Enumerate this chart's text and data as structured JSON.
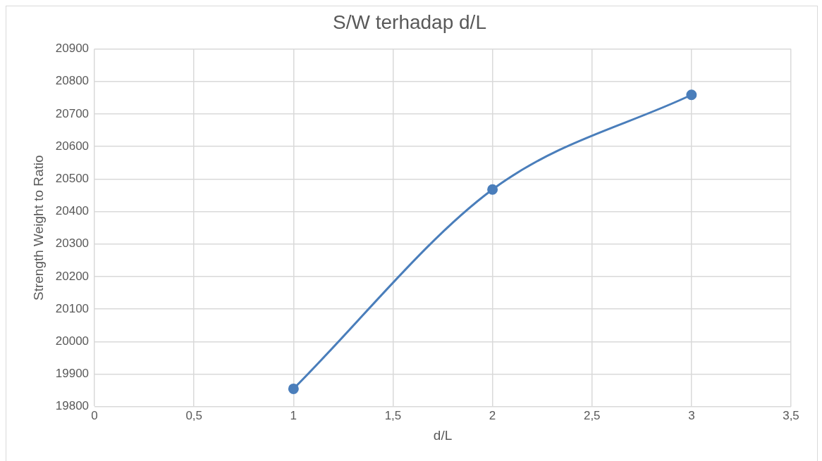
{
  "chart_data": {
    "type": "line",
    "title": "S/W terhadap d/L",
    "xlabel": "d/L",
    "ylabel": "Strength Weight to Ratio",
    "x": [
      1,
      2,
      3
    ],
    "series": [
      {
        "color": "#4a7ebb",
        "values": [
          19855,
          20468,
          20759
        ]
      }
    ],
    "xlim": [
      0,
      3.5
    ],
    "xticks": [
      0,
      {
        "value": 0.5,
        "label": "0,5"
      },
      1,
      {
        "value": 1.5,
        "label": "1,5"
      },
      2,
      {
        "value": 2.5,
        "label": "2,5"
      },
      3,
      {
        "value": 3.5,
        "label": "3,5"
      }
    ],
    "ylim": [
      19800,
      20900
    ],
    "yticks": [
      19800,
      19900,
      20000,
      20100,
      20200,
      20300,
      20400,
      20500,
      20600,
      20700,
      20800,
      20900
    ],
    "grid": true,
    "legend": false,
    "marker": "circle",
    "line_style": "solid"
  }
}
